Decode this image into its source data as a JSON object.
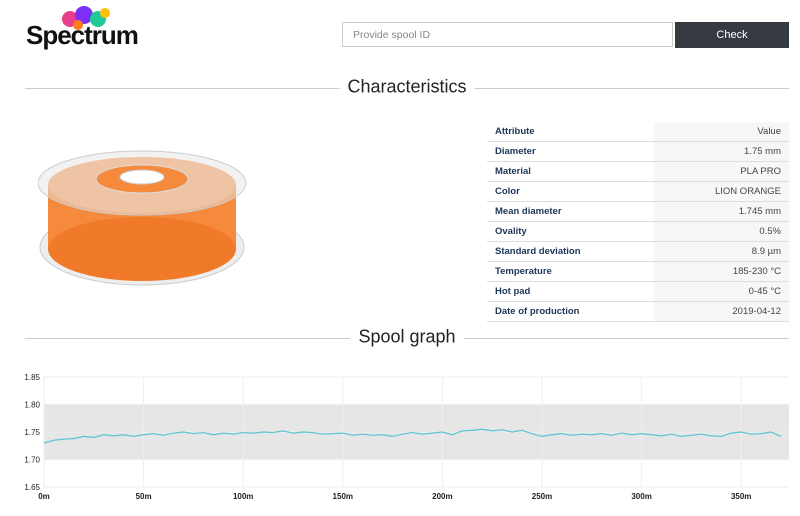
{
  "header": {
    "logo": "Spectrum",
    "search_placeholder": "Provide spool ID",
    "button": "Check"
  },
  "characteristics": {
    "title": "Characteristics",
    "table": {
      "columns": [
        "Attribute",
        "Value"
      ],
      "rows": [
        [
          "Diameter",
          "1.75 mm"
        ],
        [
          "Material",
          "PLA PRO"
        ],
        [
          "Color",
          "LION ORANGE"
        ],
        [
          "Mean diameter",
          "1.745 mm"
        ],
        [
          "Ovality",
          "0.5%"
        ],
        [
          "Standard deviation",
          "8.9 µm"
        ],
        [
          "Temperature",
          "185-230 °C"
        ],
        [
          "Hot pad",
          "0-45 °C"
        ],
        [
          "Date of production",
          "2019-04-12"
        ]
      ]
    }
  },
  "chart_data": {
    "type": "line",
    "title": "Spool graph",
    "color": "#5bc4d1",
    "band": [
      1.7,
      1.8
    ],
    "band_color": "#e6e6e6",
    "xlim": [
      0,
      374
    ],
    "ylim": [
      1.65,
      1.85
    ],
    "xticks": [
      {
        "value": 0,
        "label": "0m"
      },
      {
        "value": 50,
        "label": "50m"
      },
      {
        "value": 100,
        "label": "100m"
      },
      {
        "value": 150,
        "label": "150m"
      },
      {
        "value": 200,
        "label": "200m"
      },
      {
        "value": 250,
        "label": "250m"
      },
      {
        "value": 300,
        "label": "300m"
      },
      {
        "value": 350,
        "label": "350m"
      }
    ],
    "yticks": [
      {
        "value": 1.65,
        "label": "1.65"
      },
      {
        "value": 1.7,
        "label": "1.70"
      },
      {
        "value": 1.75,
        "label": "1.75"
      },
      {
        "value": 1.8,
        "label": "1.80"
      },
      {
        "value": 1.85,
        "label": "1.85"
      }
    ],
    "x": [
      0,
      5,
      10,
      15,
      20,
      25,
      30,
      35,
      40,
      45,
      50,
      55,
      60,
      65,
      70,
      75,
      80,
      85,
      90,
      95,
      100,
      105,
      110,
      115,
      120,
      125,
      130,
      135,
      140,
      145,
      150,
      155,
      160,
      165,
      170,
      175,
      180,
      185,
      190,
      195,
      200,
      205,
      210,
      215,
      220,
      225,
      230,
      235,
      240,
      245,
      250,
      255,
      260,
      265,
      270,
      275,
      280,
      285,
      290,
      295,
      300,
      305,
      310,
      315,
      320,
      325,
      330,
      335,
      340,
      345,
      350,
      355,
      360,
      365,
      370
    ],
    "values": [
      1.73,
      1.735,
      1.737,
      1.738,
      1.742,
      1.74,
      1.745,
      1.743,
      1.745,
      1.742,
      1.745,
      1.747,
      1.744,
      1.748,
      1.75,
      1.747,
      1.749,
      1.745,
      1.748,
      1.746,
      1.749,
      1.748,
      1.75,
      1.749,
      1.752,
      1.748,
      1.75,
      1.749,
      1.746,
      1.747,
      1.748,
      1.744,
      1.746,
      1.744,
      1.745,
      1.742,
      1.746,
      1.749,
      1.746,
      1.748,
      1.75,
      1.745,
      1.752,
      1.753,
      1.755,
      1.752,
      1.754,
      1.75,
      1.753,
      1.747,
      1.742,
      1.745,
      1.747,
      1.744,
      1.746,
      1.745,
      1.747,
      1.744,
      1.748,
      1.745,
      1.747,
      1.745,
      1.743,
      1.746,
      1.742,
      1.744,
      1.746,
      1.743,
      1.742,
      1.748,
      1.75,
      1.746,
      1.747,
      1.75,
      1.742
    ]
  }
}
